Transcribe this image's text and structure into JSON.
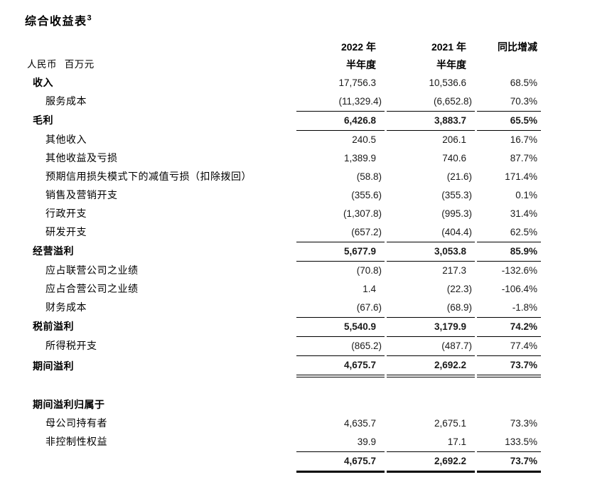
{
  "title": {
    "text": "综合收益表",
    "superscript": "3"
  },
  "table": {
    "unit_label": "人民币 百万元",
    "columns": [
      {
        "line1": "2022 年",
        "line2": "半年度"
      },
      {
        "line1": "2021 年",
        "line2": "半年度"
      },
      {
        "line1": "同比增减",
        "line2": ""
      }
    ],
    "rows": [
      {
        "label": "收入",
        "indent": 0,
        "bold_label": true,
        "bold_values": false,
        "values": [
          "17,756.3",
          "10,536.6",
          "68.5%"
        ]
      },
      {
        "label": "服务成本",
        "indent": 1,
        "values": [
          "(11,329.4)",
          "(6,652.8)",
          "70.3%"
        ]
      },
      {
        "label": "毛利",
        "indent": 0,
        "bold_label": true,
        "bold_values": true,
        "values": [
          "6,426.8",
          "3,883.7",
          "65.5%"
        ],
        "border_top": true,
        "border_bottom": "single"
      },
      {
        "label": "其他收入",
        "indent": 1,
        "values": [
          "240.5",
          "206.1",
          "16.7%"
        ]
      },
      {
        "label": "其他收益及亏损",
        "indent": 1,
        "values": [
          "1,389.9",
          "740.6",
          "87.7%"
        ]
      },
      {
        "label": "预期信用损失模式下的减值亏损（扣除拨回）",
        "indent": 1,
        "values": [
          "(58.8)",
          "(21.6)",
          "171.4%"
        ]
      },
      {
        "label": "销售及营销开支",
        "indent": 1,
        "values": [
          "(355.6)",
          "(355.3)",
          "0.1%"
        ]
      },
      {
        "label": "行政开支",
        "indent": 1,
        "values": [
          "(1,307.8)",
          "(995.3)",
          "31.4%"
        ]
      },
      {
        "label": "研发开支",
        "indent": 1,
        "values": [
          "(657.2)",
          "(404.4)",
          "62.5%"
        ]
      },
      {
        "label": "经营溢利",
        "indent": 0,
        "bold_label": true,
        "bold_values": true,
        "values": [
          "5,677.9",
          "3,053.8",
          "85.9%"
        ],
        "border_top": true,
        "border_bottom": "single"
      },
      {
        "label": "应占联营公司之业绩",
        "indent": 1,
        "values": [
          "(70.8)",
          "217.3",
          "-132.6%"
        ]
      },
      {
        "label": "应占合营公司之业绩",
        "indent": 1,
        "values": [
          "1.4",
          "(22.3)",
          "-106.4%"
        ]
      },
      {
        "label": "财务成本",
        "indent": 1,
        "values": [
          "(67.6)",
          "(68.9)",
          "-1.8%"
        ]
      },
      {
        "label": "税前溢利",
        "indent": 0,
        "bold_label": true,
        "bold_values": true,
        "values": [
          "5,540.9",
          "3,179.9",
          "74.2%"
        ],
        "border_top": true,
        "border_bottom": "single"
      },
      {
        "label": "所得税开支",
        "indent": 1,
        "values": [
          "(865.2)",
          "(487.7)",
          "77.4%"
        ]
      },
      {
        "label": "期间溢利",
        "indent": 0,
        "bold_label": true,
        "bold_values": true,
        "values": [
          "4,675.7",
          "2,692.2",
          "73.7%"
        ],
        "border_top": true,
        "border_bottom": "double"
      },
      {
        "type": "spacer"
      },
      {
        "label": "期间溢利归属于",
        "indent": 0,
        "bold_label": true,
        "values": [
          "",
          "",
          ""
        ]
      },
      {
        "label": "母公司持有者",
        "indent": 1,
        "values": [
          "4,635.7",
          "2,675.1",
          "73.3%"
        ]
      },
      {
        "label": "非控制性权益",
        "indent": 1,
        "values": [
          "39.9",
          "17.1",
          "133.5%"
        ]
      },
      {
        "label": "",
        "indent": 0,
        "bold_values": true,
        "values": [
          "4,675.7",
          "2,692.2",
          "73.7%"
        ],
        "border_top": true,
        "border_bottom": "thick"
      }
    ]
  }
}
